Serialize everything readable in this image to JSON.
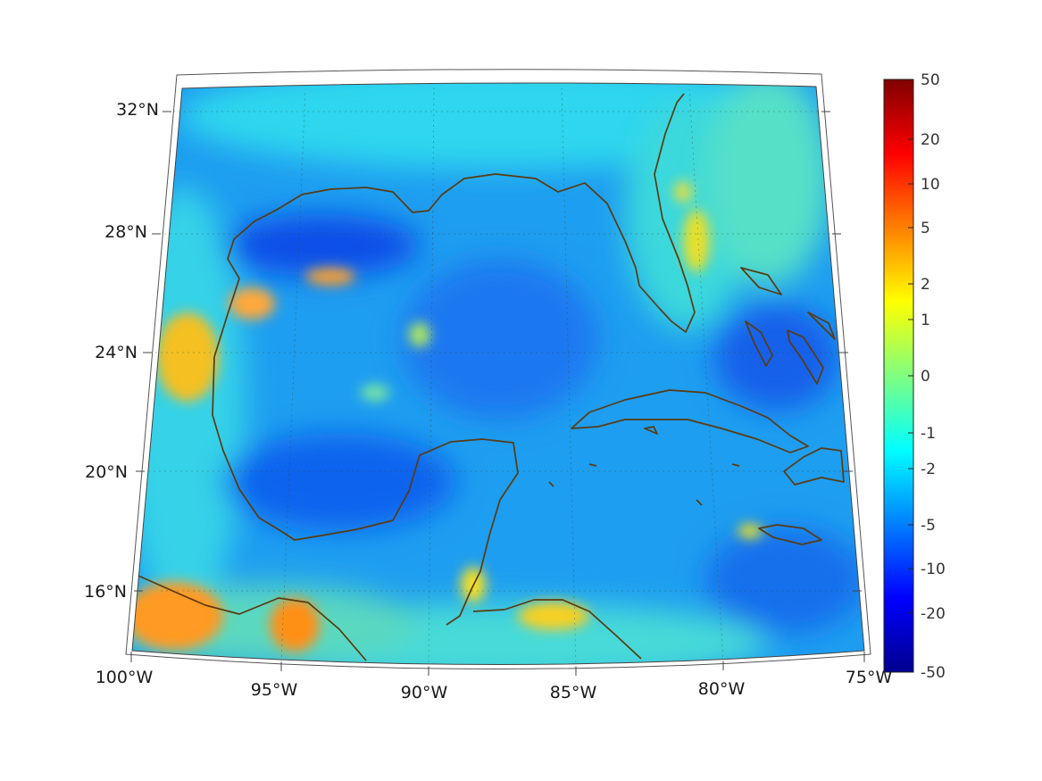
{
  "map": {
    "projection": "conic",
    "extent": {
      "lon_min": -100,
      "lon_max": -75,
      "lat_min": 14,
      "lat_max": 33
    },
    "lon_ticks": [
      {
        "value": -100,
        "label": "100°W"
      },
      {
        "value": -95,
        "label": "95°W"
      },
      {
        "value": -90,
        "label": "90°W"
      },
      {
        "value": -85,
        "label": "85°W"
      },
      {
        "value": -80,
        "label": "80°W"
      },
      {
        "value": -75,
        "label": "75°W"
      }
    ],
    "lat_ticks": [
      {
        "value": 16,
        "label": "16°N"
      },
      {
        "value": 20,
        "label": "20°N"
      },
      {
        "value": 24,
        "label": "24°N"
      },
      {
        "value": 28,
        "label": "28°N"
      },
      {
        "value": 32,
        "label": "32°N"
      }
    ],
    "grid": true,
    "coastline_color": "#5b3a0f",
    "frame_color": "#444444"
  },
  "colorbar": {
    "colormap": "jet",
    "placement": "right",
    "tick_labels": [
      "50",
      "20",
      "10",
      "5",
      "2",
      "1",
      "0",
      "-1",
      "-2",
      "-5",
      "-10",
      "-20",
      "-50"
    ]
  }
}
